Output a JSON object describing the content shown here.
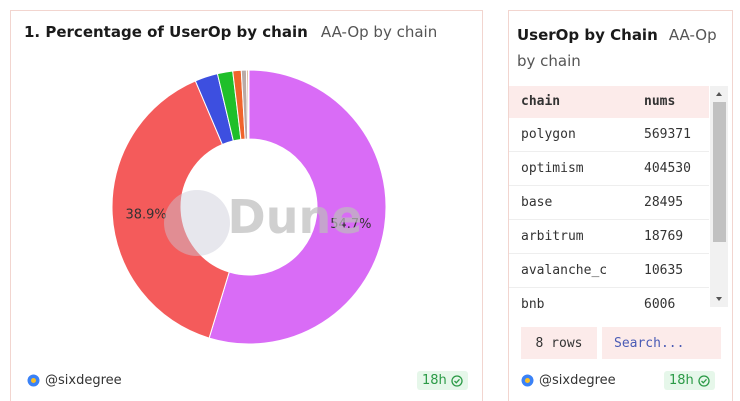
{
  "left_panel": {
    "title": "1. Percentage of UserOp by chain",
    "subtitle": "AA-Op by chain",
    "author": "@sixdegree",
    "age": "18h"
  },
  "chart_data": {
    "type": "donut",
    "values": [
      54.7,
      38.9,
      2.7,
      1.8,
      1.0,
      0.6,
      0.2,
      0.1
    ],
    "value_labels": [
      "54.7%",
      "38.9%",
      null,
      null,
      null,
      null,
      null,
      null
    ],
    "colors": [
      "#d96cf6",
      "#f45b5b",
      "#3d4fe0",
      "#1fbf2a",
      "#f0642c",
      "#b9aaa6",
      "#c8885c",
      "#8e8e8e"
    ],
    "watermark": "Dune"
  },
  "right_panel": {
    "title": "UserOp by Chain",
    "subtitle": "AA-Op by chain",
    "table": {
      "columns": [
        "chain",
        "nums"
      ],
      "rows": [
        [
          "polygon",
          569371
        ],
        [
          "optimism",
          404530
        ],
        [
          "base",
          28495
        ],
        [
          "arbitrum",
          18769
        ],
        [
          "avalanche_c",
          10635
        ],
        [
          "bnb",
          6006
        ]
      ]
    },
    "row_count": "8 rows",
    "search_placeholder": "Search...",
    "author": "@sixdegree",
    "age": "18h"
  }
}
